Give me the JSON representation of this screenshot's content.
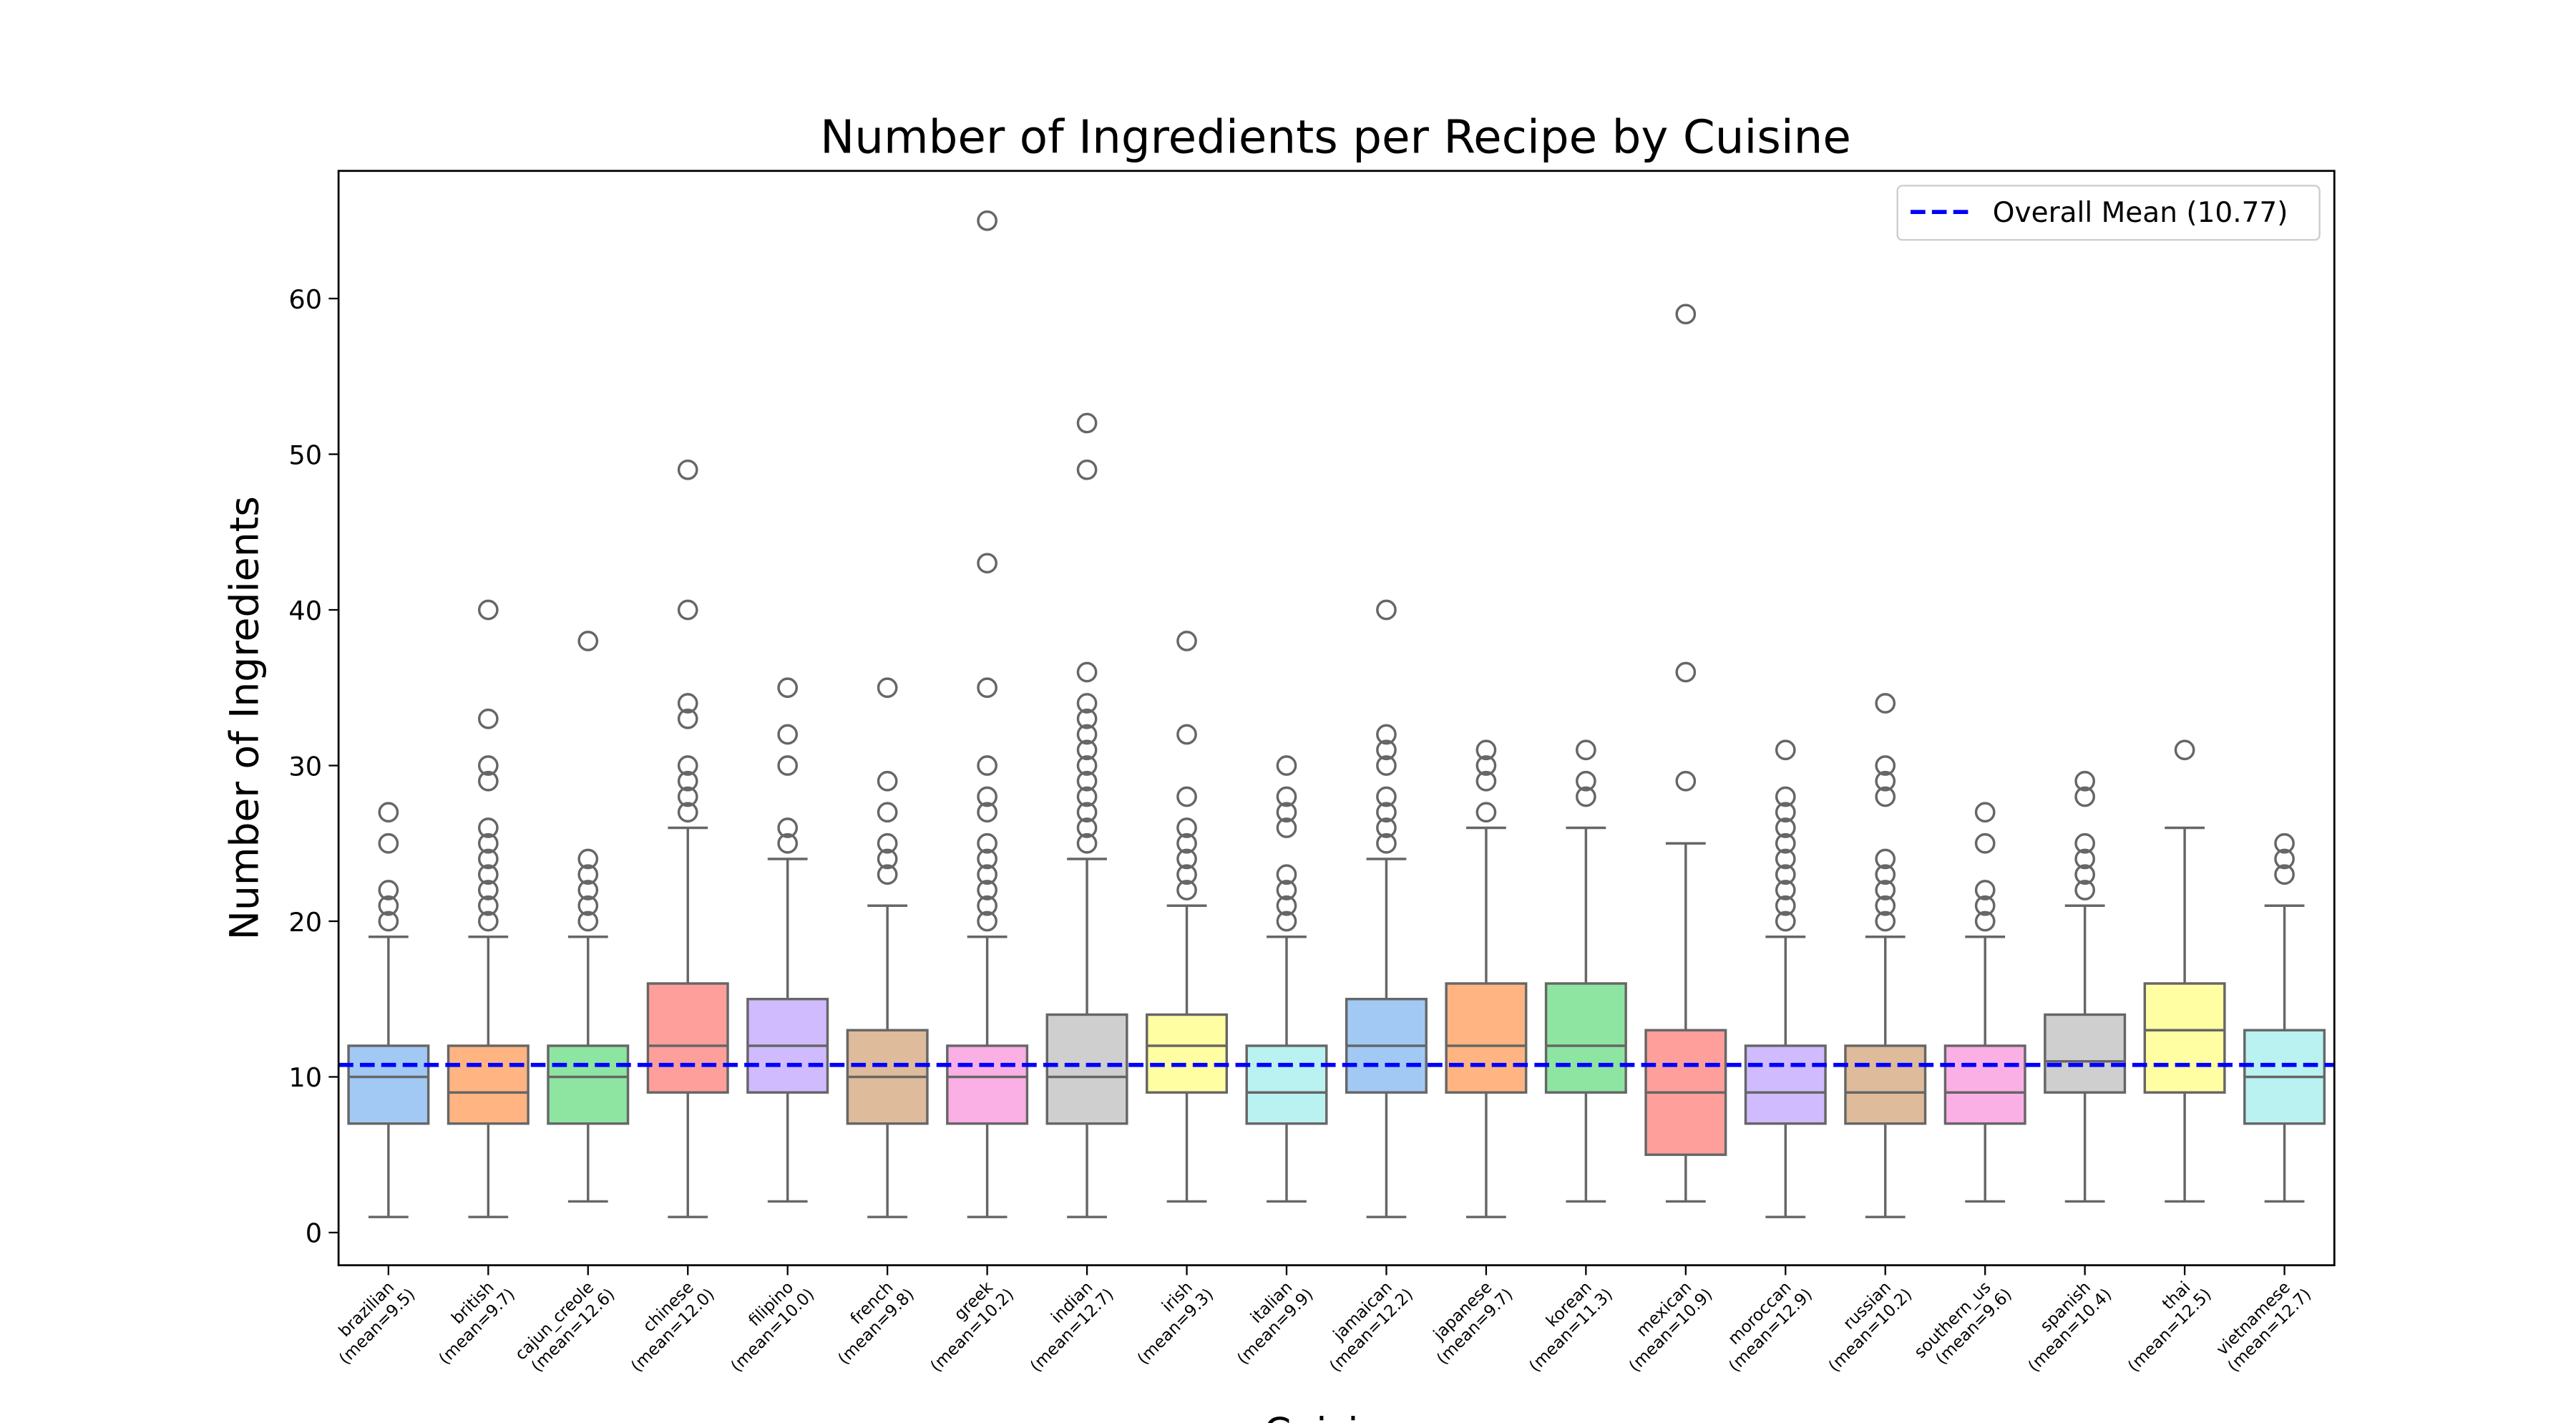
{
  "chart_data": {
    "type": "box",
    "title": "Number of Ingredients per Recipe by Cuisine",
    "xlabel": "Cuisine",
    "ylabel": "Number of Ingredients",
    "categories": [
      "brazilian",
      "british",
      "cajun_creole",
      "chinese",
      "filipino",
      "french",
      "greek",
      "indian",
      "irish",
      "italian",
      "jamaican",
      "japanese",
      "korean",
      "mexican",
      "moroccan",
      "russian",
      "southern_us",
      "spanish",
      "thai",
      "vietnamese"
    ],
    "category_notes": [
      "(mean=9.5)",
      "(mean=9.7)",
      "(mean=12.6)",
      "(mean=12.0)",
      "(mean=10.0)",
      "(mean=9.8)",
      "(mean=10.2)",
      "(mean=12.7)",
      "(mean=9.3)",
      "(mean=9.9)",
      "(mean=12.2)",
      "(mean=9.7)",
      "(mean=11.3)",
      "(mean=10.9)",
      "(mean=12.9)",
      "(mean=10.2)",
      "(mean=9.6)",
      "(mean=10.4)",
      "(mean=12.5)",
      "(mean=12.7)"
    ],
    "colors": [
      "#a1c9f4",
      "#ffb482",
      "#8de5a1",
      "#ff9f9b",
      "#d0bbff",
      "#debb9b",
      "#fab0e4",
      "#cfcfcf",
      "#fffea3",
      "#b9f2f0",
      "#a1c9f4",
      "#ffb482",
      "#8de5a1",
      "#ff9f9b",
      "#d0bbff",
      "#debb9b",
      "#fab0e4",
      "#cfcfcf",
      "#fffea3",
      "#b9f2f0"
    ],
    "boxes": [
      {
        "whislo": 1,
        "q1": 7,
        "med": 10,
        "q3": 12,
        "whishi": 19,
        "fliers": [
          20,
          21,
          22,
          25,
          27
        ]
      },
      {
        "whislo": 1,
        "q1": 7,
        "med": 9,
        "q3": 12,
        "whishi": 19,
        "fliers": [
          20,
          21,
          22,
          23,
          24,
          25,
          26,
          29,
          30,
          33,
          40
        ]
      },
      {
        "whislo": 2,
        "q1": 7,
        "med": 10,
        "q3": 12,
        "whishi": 19,
        "fliers": [
          20,
          21,
          22,
          23,
          24,
          38
        ]
      },
      {
        "whislo": 1,
        "q1": 9,
        "med": 12,
        "q3": 16,
        "whishi": 26,
        "fliers": [
          27,
          28,
          29,
          30,
          33,
          34,
          40,
          49
        ]
      },
      {
        "whislo": 2,
        "q1": 9,
        "med": 12,
        "q3": 15,
        "whishi": 24,
        "fliers": [
          25,
          26,
          30,
          32,
          35
        ]
      },
      {
        "whislo": 1,
        "q1": 7,
        "med": 10,
        "q3": 13,
        "whishi": 21,
        "fliers": [
          23,
          24,
          25,
          27,
          29,
          35
        ]
      },
      {
        "whislo": 1,
        "q1": 7,
        "med": 10,
        "q3": 12,
        "whishi": 19,
        "fliers": [
          20,
          21,
          22,
          23,
          24,
          25,
          27,
          28,
          30,
          35,
          43,
          65
        ]
      },
      {
        "whislo": 1,
        "q1": 7,
        "med": 10,
        "q3": 14,
        "whishi": 24,
        "fliers": [
          25,
          26,
          27,
          28,
          29,
          30,
          31,
          32,
          33,
          34,
          36,
          49,
          52
        ]
      },
      {
        "whislo": 2,
        "q1": 9,
        "med": 12,
        "q3": 14,
        "whishi": 21,
        "fliers": [
          22,
          23,
          24,
          25,
          26,
          28,
          32,
          38
        ]
      },
      {
        "whislo": 2,
        "q1": 7,
        "med": 9,
        "q3": 12,
        "whishi": 19,
        "fliers": [
          20,
          21,
          22,
          23,
          26,
          27,
          28,
          30
        ]
      },
      {
        "whislo": 1,
        "q1": 9,
        "med": 12,
        "q3": 15,
        "whishi": 24,
        "fliers": [
          25,
          26,
          27,
          28,
          30,
          31,
          32,
          40
        ]
      },
      {
        "whislo": 1,
        "q1": 9,
        "med": 12,
        "q3": 16,
        "whishi": 26,
        "fliers": [
          27,
          29,
          30,
          31
        ]
      },
      {
        "whislo": 2,
        "q1": 9,
        "med": 12,
        "q3": 16,
        "whishi": 26,
        "fliers": [
          28,
          29,
          31
        ]
      },
      {
        "whislo": 2,
        "q1": 5,
        "med": 9,
        "q3": 13,
        "whishi": 25,
        "fliers": [
          29,
          36,
          59
        ]
      },
      {
        "whislo": 1,
        "q1": 7,
        "med": 9,
        "q3": 12,
        "whishi": 19,
        "fliers": [
          20,
          21,
          22,
          23,
          24,
          25,
          26,
          27,
          28,
          31
        ]
      },
      {
        "whislo": 1,
        "q1": 7,
        "med": 9,
        "q3": 12,
        "whishi": 19,
        "fliers": [
          20,
          21,
          22,
          23,
          24,
          28,
          29,
          30,
          34
        ]
      },
      {
        "whislo": 2,
        "q1": 7,
        "med": 9,
        "q3": 12,
        "whishi": 19,
        "fliers": [
          20,
          21,
          22,
          25,
          27
        ]
      },
      {
        "whislo": 2,
        "q1": 9,
        "med": 11,
        "q3": 14,
        "whishi": 21,
        "fliers": [
          22,
          23,
          24,
          25,
          28,
          29
        ]
      },
      {
        "whislo": 2,
        "q1": 9,
        "med": 13,
        "q3": 16,
        "whishi": 26,
        "fliers": [
          31
        ]
      },
      {
        "whislo": 2,
        "q1": 7,
        "med": 10,
        "q3": 13,
        "whishi": 21,
        "fliers": [
          23,
          24,
          25
        ]
      }
    ],
    "mean_line": {
      "value": 10.77,
      "label": "Overall Mean (10.77)",
      "color": "#0000ff"
    },
    "legend": "upper right",
    "ylim": [
      -2.1,
      68.2
    ],
    "yticks": [
      0,
      10,
      20,
      30,
      40,
      50,
      60
    ]
  }
}
